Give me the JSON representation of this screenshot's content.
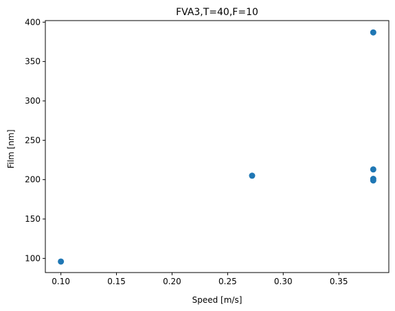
{
  "chart_data": {
    "type": "scatter",
    "title": "FVA3,T=40,F=10",
    "xlabel": "Speed [m/s]",
    "ylabel": "Film [nm]",
    "xlim": [
      0.086,
      0.395
    ],
    "ylim": [
      82,
      402
    ],
    "xticks": [
      0.1,
      0.15,
      0.2,
      0.25,
      0.3,
      0.35
    ],
    "xtick_labels": [
      "0.10",
      "0.15",
      "0.20",
      "0.25",
      "0.30",
      "0.35"
    ],
    "yticks": [
      100,
      150,
      200,
      250,
      300,
      350,
      400
    ],
    "ytick_labels": [
      "100",
      "150",
      "200",
      "250",
      "300",
      "350",
      "400"
    ],
    "grid": false,
    "marker_color": "#1f77b4",
    "points": [
      {
        "x": 0.1,
        "y": 96
      },
      {
        "x": 0.272,
        "y": 205
      },
      {
        "x": 0.381,
        "y": 387
      },
      {
        "x": 0.381,
        "y": 213
      },
      {
        "x": 0.381,
        "y": 201
      },
      {
        "x": 0.381,
        "y": 199
      }
    ]
  }
}
